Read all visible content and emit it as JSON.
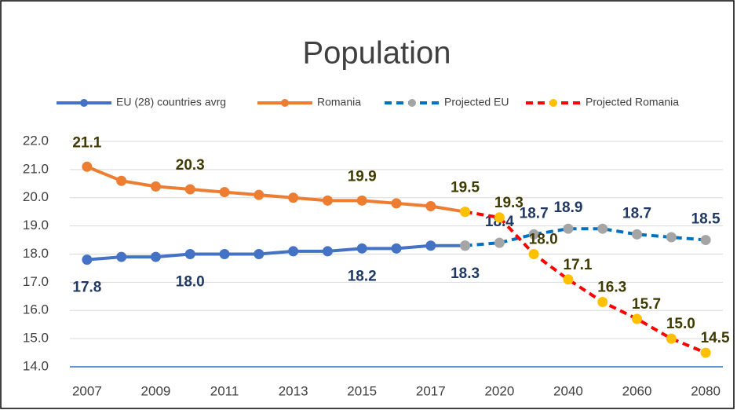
{
  "chart_data": {
    "type": "line",
    "title": "Population",
    "categories": [
      "2007",
      null,
      "2009",
      null,
      "2011",
      null,
      "2013",
      null,
      "2015",
      null,
      "2017",
      null,
      "2020",
      null,
      "2040",
      null,
      "2060",
      null,
      "2080"
    ],
    "ylim": [
      14,
      22
    ],
    "yticks": [
      {
        "value": 14,
        "label": "14.0"
      },
      {
        "value": 15,
        "label": "15.0"
      },
      {
        "value": 16,
        "label": "16.0"
      },
      {
        "value": 17,
        "label": "17.0"
      },
      {
        "value": 18,
        "label": "18.0"
      },
      {
        "value": 19,
        "label": "19.0"
      },
      {
        "value": 20,
        "label": "20.0"
      },
      {
        "value": 21,
        "label": "21.0"
      },
      {
        "value": 22,
        "label": "22.0"
      }
    ],
    "grid": true,
    "legend": "top",
    "series": [
      {
        "name": "EU (28) countries avrg",
        "color": "#4472c4",
        "marker_color": "#4472c4",
        "dashed": false,
        "label_color": "#1f3864",
        "values": [
          17.8,
          17.9,
          17.9,
          18.0,
          18.0,
          18.0,
          18.1,
          18.1,
          18.2,
          18.2,
          18.3,
          18.3,
          null,
          null,
          null,
          null,
          null,
          null,
          null
        ],
        "value_labels": [
          "17.8",
          null,
          null,
          "18.0",
          null,
          null,
          null,
          null,
          "18.2",
          null,
          null,
          "18.3",
          null,
          null,
          null,
          null,
          null,
          null,
          null
        ]
      },
      {
        "name": "Romania",
        "color": "#ed7d31",
        "marker_color": "#ed7d31",
        "dashed": false,
        "label_color": "#3f3a00",
        "values": [
          21.1,
          20.6,
          20.4,
          20.3,
          20.2,
          20.1,
          20.0,
          19.9,
          19.9,
          19.8,
          19.7,
          19.5,
          null,
          null,
          null,
          null,
          null,
          null,
          null
        ],
        "value_labels": [
          "21.1",
          null,
          null,
          "20.3",
          null,
          null,
          null,
          null,
          "19.9",
          null,
          null,
          "19.5",
          null,
          null,
          null,
          null,
          null,
          null,
          null
        ]
      },
      {
        "name": "Projected EU",
        "color": "#0070c0",
        "marker_color": "#a5a5a5",
        "dashed": true,
        "label_color": "#1f3864",
        "values": [
          null,
          null,
          null,
          null,
          null,
          null,
          null,
          null,
          null,
          null,
          null,
          18.3,
          18.4,
          18.7,
          18.9,
          18.9,
          18.7,
          18.6,
          18.5
        ],
        "value_labels": [
          null,
          null,
          null,
          null,
          null,
          null,
          null,
          null,
          null,
          null,
          null,
          null,
          "18.4",
          "18.7",
          "18.9",
          null,
          "18.7",
          null,
          "18.5"
        ]
      },
      {
        "name": "Projected Romania",
        "color": "#ff0000",
        "marker_color": "#ffc000",
        "dashed": true,
        "label_color": "#3f3a00",
        "values": [
          null,
          null,
          null,
          null,
          null,
          null,
          null,
          null,
          null,
          null,
          null,
          19.5,
          19.3,
          18.0,
          17.1,
          16.3,
          15.7,
          15.0,
          14.5
        ],
        "value_labels": [
          null,
          null,
          null,
          null,
          null,
          null,
          null,
          null,
          null,
          null,
          null,
          null,
          "19.3",
          "18.0",
          "17.1",
          "16.3",
          "15.7",
          "15.0",
          "14.5"
        ]
      }
    ]
  }
}
